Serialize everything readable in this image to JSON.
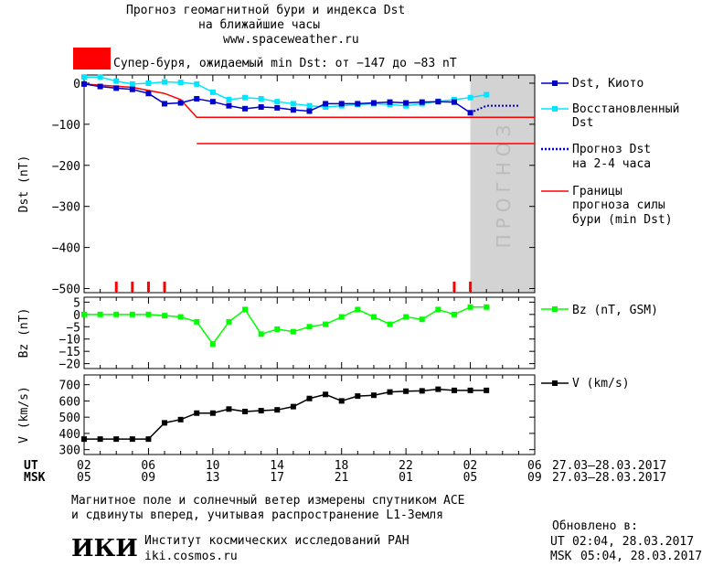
{
  "header": {
    "title_line1": "Прогноз геомагнитной бури и индекса Dst",
    "title_line2": "на ближайшие часы",
    "url": "www.spaceweather.ru",
    "storm_text": "Супер-буря, ожидаемый min Dst: от −147 до −83 nT",
    "storm_color": "#ff0000"
  },
  "legend": {
    "kyoto": "Dst, Киото",
    "restored_1": "Восстановленный",
    "restored_2": "Dst",
    "forecast_1": "Прогноз Dst",
    "forecast_2": "на 2-4 часа",
    "bounds_1": "Границы",
    "bounds_2": "прогноза силы",
    "bounds_3": "бури (min Dst)",
    "bz": "Bz (nT, GSM)",
    "v": "V (km/s)"
  },
  "forecast_watermark": "ПРОГНОЗ",
  "time_axis": {
    "ut_label": "UT",
    "msk_label": "MSK",
    "ut_ticks": [
      "02",
      "06",
      "10",
      "14",
      "18",
      "22",
      "02",
      "06"
    ],
    "msk_ticks": [
      "05",
      "09",
      "13",
      "17",
      "21",
      "01",
      "05",
      "09"
    ],
    "date_range_ut": "27.03–28.03.2017",
    "date_range_msk": "27.03–28.03.2017"
  },
  "footer": {
    "note_line1": "Магнитное поле и солнечный ветер измерены спутником ACE",
    "note_line2": "и сдвинуты вперед, учитывая распространение L1-Земля",
    "institute": "Институт космических исследований РАН",
    "institute_url": "iki.cosmos.ru",
    "logo": "ИКИ",
    "updated_label": "Обновлено в:",
    "updated_ut_label": "UT",
    "updated_ut": "02:04, 28.03.2017",
    "updated_msk_label": "MSK",
    "updated_msk": "05:04, 28.03.2017"
  },
  "colors": {
    "kyoto": "#0000cc",
    "restored": "#00e5ff",
    "forecast": "#0000cc",
    "bounds": "#ff0000",
    "bz": "#00ff00",
    "v": "#000000",
    "forecast_zone": "#d3d3d3"
  },
  "chart_data": [
    {
      "type": "line",
      "ylabel": "Dst (nT)",
      "ylim": [
        -510,
        20
      ],
      "yticks": [
        0,
        -100,
        -200,
        -300,
        -400,
        -500
      ],
      "xlim_hours": [
        0,
        28
      ],
      "series": [
        {
          "name": "Dst, Киото",
          "x": [
            0,
            1,
            2,
            3,
            4,
            5,
            6,
            7,
            8,
            9,
            10,
            11,
            12,
            13,
            14,
            15,
            16,
            17,
            18,
            19,
            20,
            21,
            22,
            23,
            24
          ],
          "y": [
            -2,
            -8,
            -12,
            -15,
            -25,
            -50,
            -48,
            -38,
            -45,
            -55,
            -62,
            -58,
            -60,
            -65,
            -68,
            -50,
            -50,
            -50,
            -48,
            -46,
            -48,
            -46,
            -45,
            -46,
            -72
          ]
        },
        {
          "name": "Восстановленный Dst",
          "x": [
            0,
            1,
            2,
            3,
            4,
            5,
            6,
            7,
            8,
            9,
            10,
            11,
            12,
            13,
            14,
            15,
            16,
            17,
            18,
            19,
            20,
            21,
            22,
            23,
            24,
            25
          ],
          "y": [
            15,
            15,
            5,
            -2,
            0,
            3,
            2,
            -2,
            -22,
            -40,
            -35,
            -38,
            -45,
            -50,
            -55,
            -58,
            -55,
            -52,
            -50,
            -52,
            -55,
            -50,
            -44,
            -40,
            -35,
            -28
          ]
        },
        {
          "name": "Прогноз Dst на 2-4 часа",
          "x": [
            24,
            25,
            26,
            27
          ],
          "y": [
            -72,
            -55,
            -55,
            -55
          ]
        },
        {
          "name": "Границы прогноза силы бури (min Dst)",
          "segments": [
            {
              "x": [
                0,
                3,
                5,
                6,
                7,
                28
              ],
              "y": [
                -2,
                -10,
                -25,
                -40,
                -83,
                -83
              ]
            },
            {
              "x": [
                7,
                28
              ],
              "y": [
                -147,
                -147
              ]
            }
          ]
        }
      ],
      "storm_markers_hours": [
        2,
        3,
        4,
        5,
        23,
        24
      ],
      "forecast_zone_hours": [
        24,
        28
      ]
    },
    {
      "type": "line",
      "ylabel": "Bz (nT)",
      "ylim": [
        -22,
        7
      ],
      "yticks": [
        5,
        0,
        -5,
        -10,
        -15,
        -20
      ],
      "series": [
        {
          "name": "Bz (nT, GSM)",
          "x": [
            0,
            1,
            2,
            3,
            4,
            5,
            6,
            7,
            8,
            9,
            10,
            11,
            12,
            13,
            14,
            15,
            16,
            17,
            18,
            19,
            20,
            21,
            22,
            23,
            24,
            25
          ],
          "y": [
            0,
            0,
            0,
            0,
            0,
            -0.5,
            -1,
            -3,
            -12,
            -3,
            2,
            -8,
            -6,
            -7,
            -5,
            -4,
            -1,
            2,
            -1,
            -4,
            -1,
            -2,
            2,
            0,
            3,
            3
          ]
        }
      ]
    },
    {
      "type": "line",
      "ylabel": "V (km/s)",
      "ylim": [
        270,
        760
      ],
      "yticks": [
        700,
        600,
        500,
        400,
        300
      ],
      "series": [
        {
          "name": "V (km/s)",
          "x": [
            0,
            1,
            2,
            3,
            4,
            5,
            6,
            7,
            8,
            9,
            10,
            11,
            12,
            13,
            14,
            15,
            16,
            17,
            18,
            19,
            20,
            21,
            22,
            23,
            24,
            25
          ],
          "y": [
            365,
            365,
            365,
            365,
            365,
            465,
            485,
            525,
            525,
            550,
            535,
            540,
            545,
            565,
            615,
            640,
            600,
            630,
            635,
            655,
            660,
            662,
            672,
            665,
            665,
            665
          ]
        }
      ]
    }
  ]
}
